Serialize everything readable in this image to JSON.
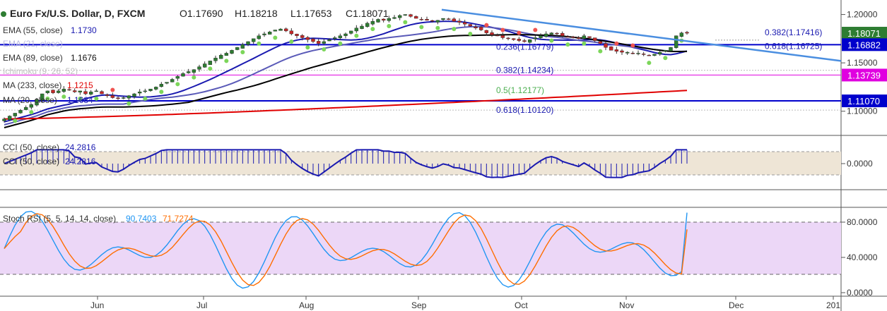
{
  "header": {
    "symbol": "Euro Fx/U.S. Dollar, D, FXCM",
    "open": "O1.17690",
    "high": "H1.18218",
    "low": "L1.17653",
    "close": "C1.18071"
  },
  "legend": [
    {
      "text": "EMA (55, close)",
      "value": "1.1730",
      "color": "#1a1ab0"
    },
    {
      "text": "EMA (21, close)",
      "value": "",
      "color": "#c0c0ff"
    },
    {
      "text": "EMA (89, close)",
      "value": "1.1676",
      "color": "#000000"
    },
    {
      "text": "Ichimoku (9, 26, 52)",
      "value": "",
      "color": "#c0c0c0"
    },
    {
      "text": "MA (233, close)",
      "value": "1.1215",
      "color": "#e00000"
    },
    {
      "text": "MA (20, close)",
      "value": "1.1684",
      "color": "#1a1ab0"
    }
  ],
  "price_axis": {
    "ticks": [
      "1.20000",
      "1.15000",
      "1.10000"
    ],
    "tags": [
      {
        "text": "1.18071",
        "bg": "#2e7d32",
        "fg": "#ffffff",
        "value": 1.18071
      },
      {
        "text": "1.16882",
        "bg": "#0000cc",
        "fg": "#ffffff",
        "value": 1.16882
      },
      {
        "text": "1.13739",
        "bg": "#e000e0",
        "fg": "#ffffff",
        "value": 1.13739
      },
      {
        "text": "1.11070",
        "bg": "#0000cc",
        "fg": "#ffffff",
        "value": 1.1107
      }
    ]
  },
  "fib_labels": [
    {
      "text": "0.382(1.17416)",
      "color": "#1a1ab0",
      "value": 1.17416
    },
    {
      "text": "0.618(1.16725)",
      "color": "#1a1ab0",
      "value": 1.16725
    },
    {
      "text": "0.236(1.16779)",
      "color": "#1a1ab0",
      "value": 1.16779
    },
    {
      "text": "0.382(1.14234)",
      "color": "#1a1ab0",
      "value": 1.14234
    },
    {
      "text": "0.5(1.12177)",
      "color": "#4caf50",
      "value": 1.12177
    },
    {
      "text": "0.618(1.10120)",
      "color": "#1a1ab0",
      "value": 1.1012
    }
  ],
  "cci_panel": {
    "label1": "CCI (50, close)",
    "value1": "24.2816",
    "label2": "CCI (50, close)",
    "value2": "24.2816",
    "tick": "0.0000"
  },
  "stoch_panel": {
    "label": "Stoch RSI (5, 5, 14, 14, close)",
    "k_value": "90.7403",
    "d_value": "71.7274",
    "k_color": "#2196f3",
    "d_color": "#ff6d00",
    "ticks": [
      "80.0000",
      "40.0000",
      "0.0000"
    ]
  },
  "time_axis": [
    "Jun",
    "Jul",
    "Aug",
    "Sep",
    "Oct",
    "Nov",
    "Dec",
    "201"
  ],
  "chart_data": [
    {
      "type": "candlestick",
      "title": "Euro Fx/U.S. Dollar, D, FXCM",
      "ylim": [
        1.075,
        1.215
      ],
      "horizontal_lines": [
        1.16882,
        1.13739,
        1.1107
      ],
      "close_path": [
        1.092,
        1.095,
        1.098,
        1.101,
        1.104,
        1.107,
        1.112,
        1.118,
        1.121,
        1.119,
        1.121,
        1.123,
        1.122,
        1.12,
        1.121,
        1.118,
        1.12,
        1.121,
        1.118,
        1.116,
        1.114,
        1.113,
        1.114,
        1.116,
        1.118,
        1.12,
        1.121,
        1.123,
        1.125,
        1.128,
        1.13,
        1.133,
        1.136,
        1.139,
        1.141,
        1.143,
        1.146,
        1.149,
        1.152,
        1.155,
        1.158,
        1.16,
        1.163,
        1.166,
        1.169,
        1.172,
        1.175,
        1.178,
        1.18,
        1.182,
        1.184,
        1.185,
        1.183,
        1.18,
        1.178,
        1.176,
        1.174,
        1.172,
        1.17,
        1.172,
        1.174,
        1.176,
        1.178,
        1.18,
        1.183,
        1.186,
        1.188,
        1.191,
        1.193,
        1.195,
        1.194,
        1.196,
        1.197,
        1.199,
        1.2,
        1.198,
        1.196,
        1.195,
        1.194,
        1.193,
        1.194,
        1.196,
        1.195,
        1.193,
        1.192,
        1.19,
        1.188,
        1.186,
        1.184,
        1.181,
        1.179,
        1.178,
        1.176,
        1.175,
        1.174,
        1.173,
        1.172,
        1.174,
        1.176,
        1.178,
        1.18,
        1.181,
        1.18,
        1.178,
        1.177,
        1.176,
        1.175,
        1.178,
        1.176,
        1.173,
        1.17,
        1.166,
        1.163,
        1.162,
        1.161,
        1.161,
        1.16,
        1.16,
        1.159,
        1.158,
        1.159,
        1.161,
        1.163,
        1.166,
        1.178,
        1.181,
        1.1807
      ]
    },
    {
      "type": "line",
      "title": "CCI (50, close)",
      "last_value": 24.2816
    },
    {
      "type": "line",
      "title": "Stoch RSI (5, 5, 14, 14, close)",
      "series": [
        {
          "name": "K",
          "last_value": 90.7403
        },
        {
          "name": "D",
          "last_value": 71.7274
        }
      ],
      "ylim": [
        0,
        100
      ]
    }
  ]
}
